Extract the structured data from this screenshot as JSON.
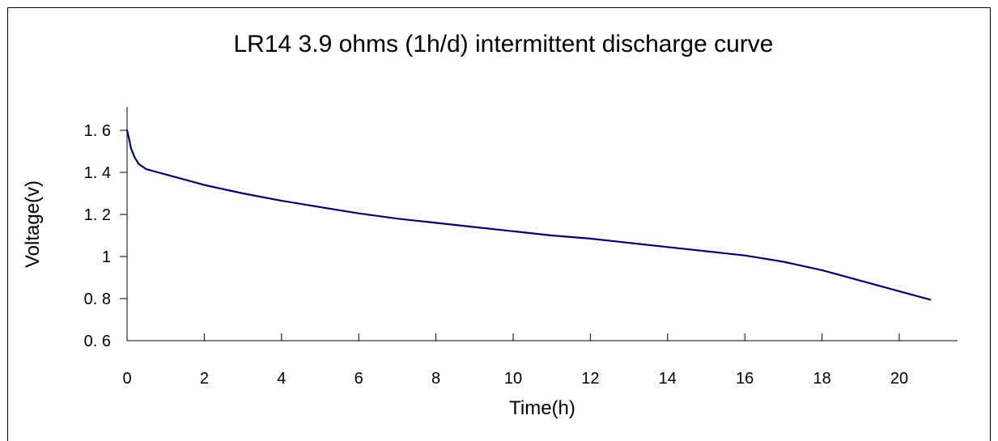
{
  "chart_data": {
    "type": "line",
    "title": "LR14 3.9 ohms (1h/d) intermittent discharge curve",
    "xlabel": "Time(h)",
    "ylabel": "Voltage(v)",
    "xlim": [
      0,
      21.5
    ],
    "ylim": [
      0.6,
      1.7
    ],
    "x_ticks": [
      0,
      2,
      4,
      6,
      8,
      10,
      12,
      14,
      16,
      18,
      20
    ],
    "y_ticks": [
      0.6,
      0.8,
      1,
      1.2,
      1.4,
      1.6
    ],
    "x_tick_labels": [
      "0",
      "2",
      "4",
      "6",
      "8",
      "10",
      "12",
      "14",
      "16",
      "18",
      "20"
    ],
    "y_tick_labels": [
      "0. 6",
      "0. 8",
      "1",
      "1. 2",
      "1. 4",
      "1. 6"
    ],
    "grid": false,
    "legend": "none",
    "line_color": "#000066",
    "series": [
      {
        "x": [
          0,
          0.05,
          0.1,
          0.2,
          0.3,
          0.5,
          0.8,
          1,
          1.5,
          2,
          3,
          4,
          5,
          6,
          7,
          8,
          9,
          10,
          11,
          12,
          13,
          14,
          15,
          16,
          16.5,
          17,
          17.5,
          18,
          18.5,
          19,
          19.5,
          20,
          20.5,
          20.8
        ],
        "values": [
          1.6,
          1.56,
          1.515,
          1.47,
          1.44,
          1.415,
          1.4,
          1.39,
          1.365,
          1.34,
          1.3,
          1.265,
          1.235,
          1.205,
          1.18,
          1.16,
          1.14,
          1.12,
          1.1,
          1.085,
          1.065,
          1.045,
          1.025,
          1.005,
          0.99,
          0.975,
          0.955,
          0.935,
          0.91,
          0.885,
          0.86,
          0.835,
          0.81,
          0.795
        ]
      }
    ]
  }
}
